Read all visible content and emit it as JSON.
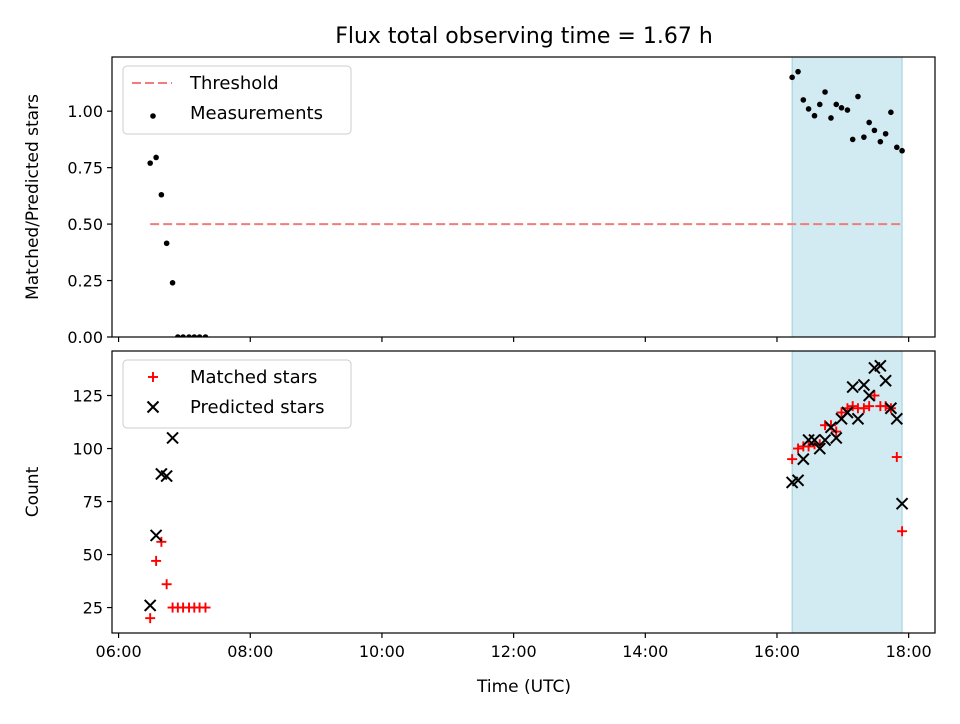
{
  "chart_data": {
    "type": "scatter",
    "title": "Flux total observing time = 1.67 h",
    "xlabel": "Time (UTC)",
    "xlim_hours": [
      5.9,
      18.4
    ],
    "x_tick_values": [
      6,
      8,
      10,
      12,
      14,
      16,
      18
    ],
    "x_tick_labels": [
      "06:00",
      "08:00",
      "10:00",
      "12:00",
      "14:00",
      "16:00",
      "18:00"
    ],
    "highlight_span_hours": [
      16.23,
      17.9
    ],
    "highlight_color": "#ADD8E6",
    "panels": [
      {
        "name": "ratio",
        "ylabel": "Matched/Predicted stars",
        "ylim": [
          0,
          1.24
        ],
        "y_ticks": [
          0.0,
          0.25,
          0.5,
          0.75,
          1.0
        ],
        "y_tick_labels": [
          "0.00",
          "0.25",
          "0.50",
          "0.75",
          "1.00"
        ],
        "legend_position": "upper-left",
        "threshold": {
          "label": "Threshold",
          "value": 0.5,
          "x_range": [
            6.48,
            17.9
          ],
          "color": "#F07C7C"
        },
        "series": [
          {
            "name": "Measurements",
            "marker": "dot",
            "color": "#000000",
            "x": [
              6.48,
              6.57,
              6.65,
              6.73,
              6.82,
              6.9,
              6.98,
              7.07,
              7.15,
              7.23,
              7.32,
              16.23,
              16.32,
              16.4,
              16.48,
              16.57,
              16.65,
              16.73,
              16.82,
              16.9,
              16.98,
              17.07,
              17.15,
              17.23,
              17.32,
              17.4,
              17.48,
              17.57,
              17.65,
              17.73,
              17.82,
              17.9
            ],
            "y": [
              0.77,
              0.795,
              0.63,
              0.415,
              0.24,
              0.0,
              0.0,
              0.0,
              0.0,
              0.0,
              0.0,
              1.15,
              1.175,
              1.05,
              1.01,
              0.98,
              1.03,
              1.085,
              0.97,
              1.03,
              1.015,
              1.005,
              0.875,
              1.065,
              0.885,
              0.95,
              0.915,
              0.865,
              0.9,
              0.995,
              0.84,
              0.825
            ]
          }
        ]
      },
      {
        "name": "count",
        "ylabel": "Count",
        "ylim": [
          13,
          146
        ],
        "y_ticks": [
          25,
          50,
          75,
          100,
          125
        ],
        "y_tick_labels": [
          "25",
          "50",
          "75",
          "100",
          "125"
        ],
        "legend_position": "upper-left",
        "series": [
          {
            "name": "Matched stars",
            "marker": "plus",
            "color": "#FF0000",
            "x": [
              6.48,
              6.57,
              6.65,
              6.73,
              6.82,
              6.9,
              6.98,
              7.07,
              7.15,
              7.23,
              7.32,
              16.23,
              16.32,
              16.4,
              16.48,
              16.57,
              16.65,
              16.73,
              16.82,
              16.9,
              16.98,
              17.07,
              17.15,
              17.23,
              17.32,
              17.4,
              17.48,
              17.57,
              17.65,
              17.73,
              17.82,
              17.9
            ],
            "y": [
              20,
              47,
              56,
              36,
              25,
              25,
              25,
              25,
              25,
              25,
              25,
              95,
              100,
              101,
              101,
              102,
              102,
              111,
              111,
              108,
              117,
              119,
              120,
              119,
              119,
              120,
              125,
              120,
              120,
              119,
              96,
              61
            ]
          },
          {
            "name": "Predicted stars",
            "marker": "x",
            "color": "#000000",
            "x": [
              6.48,
              6.57,
              6.65,
              6.73,
              6.82,
              16.23,
              16.32,
              16.4,
              16.48,
              16.57,
              16.65,
              16.73,
              16.82,
              16.9,
              16.98,
              17.07,
              17.15,
              17.23,
              17.32,
              17.4,
              17.48,
              17.57,
              17.65,
              17.73,
              17.82,
              17.9
            ],
            "y": [
              26,
              59,
              88,
              87,
              105,
              84,
              85,
              95,
              104,
              104,
              100,
              104,
              110,
              105,
              114,
              117,
              129,
              114,
              130,
              125,
              138,
              139,
              132,
              119,
              114,
              74
            ]
          }
        ]
      }
    ]
  }
}
